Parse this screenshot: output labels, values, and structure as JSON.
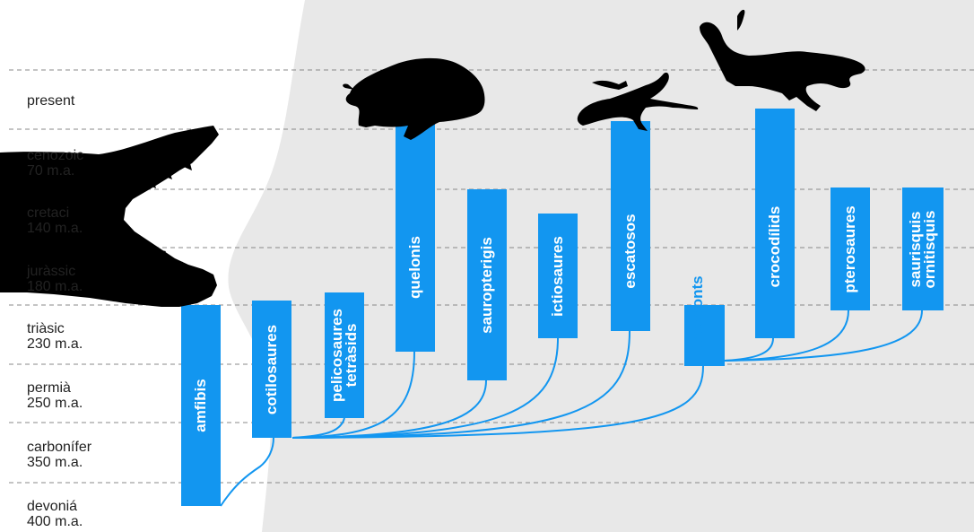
{
  "eras": [
    {
      "name": "present",
      "age": ""
    },
    {
      "name": "cenozoic",
      "age": "70 m.a."
    },
    {
      "name": "cretaci",
      "age": "140 m.a."
    },
    {
      "name": "juràssic",
      "age": "180 m.a."
    },
    {
      "name": "triàsic",
      "age": "230 m.a."
    },
    {
      "name": "permià",
      "age": "250 m.a."
    },
    {
      "name": "carbonífer",
      "age": "350 m.a."
    },
    {
      "name": "devoniá",
      "age": "400 m.a."
    }
  ],
  "clades": [
    {
      "id": "amfibis",
      "lines": [
        "amfibis"
      ]
    },
    {
      "id": "cotilosaures",
      "lines": [
        "cotilosaures"
      ]
    },
    {
      "id": "pelicosaures-tetrasids",
      "lines": [
        "pelicosaures",
        "tetràsids"
      ]
    },
    {
      "id": "quelonis",
      "lines": [
        "quelonis"
      ]
    },
    {
      "id": "sauropterigis",
      "lines": [
        "sauropterigis"
      ]
    },
    {
      "id": "ictiosaures",
      "lines": [
        "ictiosaures"
      ]
    },
    {
      "id": "escatosos",
      "lines": [
        "escatosos"
      ]
    },
    {
      "id": "tecodonts",
      "lines": [
        "tecodonts"
      ]
    },
    {
      "id": "crocodilids",
      "lines": [
        "crocodílids"
      ]
    },
    {
      "id": "pterosaures",
      "lines": [
        "pterosaures"
      ]
    },
    {
      "id": "saurisquis-ornitisquis",
      "lines": [
        "saurisquis",
        "ornitisquis"
      ]
    }
  ],
  "colors": {
    "accent": "#1296f0",
    "background_shape": "#e8e8e8",
    "silhouette": "#000000",
    "gridline": "#888888"
  },
  "icons": [
    "crocodile-skull-icon",
    "tortoise-icon",
    "lizard-icon",
    "crocodile-icon"
  ]
}
